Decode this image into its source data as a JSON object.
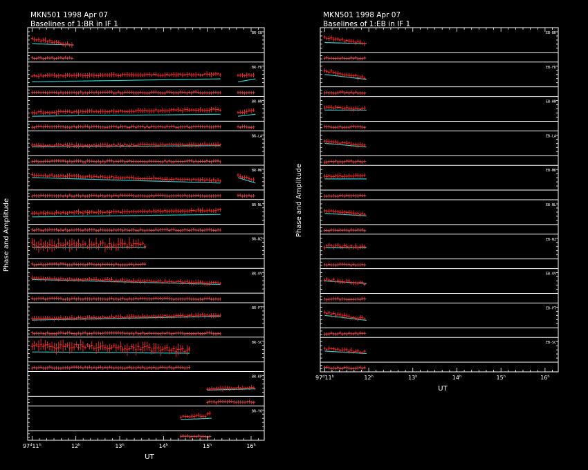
{
  "chart_data": [
    {
      "type": "scatter",
      "title": "MKN501  1998 Apr 07",
      "subtitle": "Baselines of 1:BR in IF 1",
      "xlabel": "UT",
      "ylabel": "Phase and Amplitude",
      "x_range_hours": [
        10.9,
        16.3
      ],
      "x_ticks": [
        {
          "hour": 11,
          "label": "97",
          "day_sup": "d",
          "hour_label": "11",
          "hour_sup": "h"
        },
        {
          "hour": 12,
          "label": "",
          "day_sup": "",
          "hour_label": "12",
          "hour_sup": "h"
        },
        {
          "hour": 13,
          "label": "",
          "day_sup": "",
          "hour_label": "13",
          "hour_sup": "h"
        },
        {
          "hour": 14,
          "label": "",
          "day_sup": "",
          "hour_label": "14",
          "hour_sup": "h"
        },
        {
          "hour": 15,
          "label": "",
          "day_sup": "",
          "hour_label": "15",
          "hour_sup": "h"
        },
        {
          "hour": 16,
          "label": "",
          "day_sup": "",
          "hour_label": "16",
          "hour_sup": "h"
        }
      ],
      "data_color": "#ff2a2a",
      "model_color": "#22d0d0",
      "baselines": [
        {
          "name": "BR-EB",
          "segments": [
            [
              11.0,
              11.95
            ]
          ],
          "amp_level": 0.55,
          "amp_slope": -0.25,
          "model_level": 0.35,
          "model_slope": -0.05,
          "noise": 0.08,
          "phase_level": 0.4
        },
        {
          "name": "BR-FD",
          "segments": [
            [
              11.0,
              15.3
            ],
            [
              15.7,
              16.1
            ]
          ],
          "amp_level": 0.45,
          "amp_slope": 0.05,
          "model_level": 0.2,
          "model_slope": 0.12,
          "noise": 0.05,
          "phase_level": 0.4
        },
        {
          "name": "BR-HN",
          "segments": [
            [
              11.0,
              15.3
            ],
            [
              15.7,
              16.1
            ]
          ],
          "amp_level": 0.35,
          "amp_slope": 0.12,
          "model_level": 0.2,
          "model_slope": 0.08,
          "noise": 0.06,
          "phase_level": 0.4
        },
        {
          "name": "BR-LA",
          "segments": [
            [
              11.0,
              15.3
            ]
          ],
          "amp_level": 0.4,
          "amp_slope": 0.05,
          "model_level": 0.35,
          "model_slope": 0.05,
          "noise": 0.05,
          "phase_level": 0.4
        },
        {
          "name": "BR-MK",
          "segments": [
            [
              11.0,
              15.3
            ],
            [
              15.7,
              16.1
            ]
          ],
          "amp_level": 0.6,
          "amp_slope": -0.22,
          "model_level": 0.5,
          "model_slope": -0.22,
          "noise": 0.06,
          "phase_level": 0.4
        },
        {
          "name": "BR-NL",
          "segments": [
            [
              11.0,
              15.3
            ]
          ],
          "amp_level": 0.45,
          "amp_slope": 0.12,
          "model_level": 0.3,
          "model_slope": 0.1,
          "noise": 0.05,
          "phase_level": 0.4
        },
        {
          "name": "BR-NZ",
          "segments": [
            [
              11.0,
              13.6
            ]
          ],
          "amp_level": 0.55,
          "amp_slope": 0.0,
          "model_level": 0.45,
          "model_slope": 0.0,
          "noise": 0.18,
          "phase_level": 0.4
        },
        {
          "name": "BR-OV",
          "segments": [
            [
              11.0,
              15.3
            ]
          ],
          "amp_level": 0.6,
          "amp_slope": -0.2,
          "model_level": 0.55,
          "model_slope": -0.2,
          "noise": 0.06,
          "phase_level": 0.4
        },
        {
          "name": "BR-PT",
          "segments": [
            [
              11.0,
              15.3
            ]
          ],
          "amp_level": 0.35,
          "amp_slope": 0.15,
          "model_level": 0.3,
          "model_slope": 0.15,
          "noise": 0.05,
          "phase_level": 0.4
        },
        {
          "name": "BR-SC",
          "segments": [
            [
              11.0,
              14.6
            ]
          ],
          "amp_level": 0.65,
          "amp_slope": -0.15,
          "model_level": 0.4,
          "model_slope": -0.05,
          "noise": 0.2,
          "phase_level": 0.4
        },
        {
          "name": "BR-KP",
          "segments": [
            [
              15.0,
              16.1
            ]
          ],
          "amp_level": 0.3,
          "amp_slope": 0.05,
          "model_level": 0.25,
          "model_slope": 0.05,
          "noise": 0.04,
          "phase_level": 0.4
        },
        {
          "name": "BR-YO",
          "segments": [
            [
              14.4,
              15.1
            ]
          ],
          "amp_level": 0.55,
          "amp_slope": 0.1,
          "model_level": 0.45,
          "model_slope": 0.05,
          "noise": 0.12,
          "phase_level": 0.4
        }
      ]
    },
    {
      "type": "scatter",
      "title": "MKN501  1998 Apr 07",
      "subtitle": "Baselines of 1:EB in IF 1",
      "xlabel": "UT",
      "ylabel": "Phase and Amplitude",
      "x_range_hours": [
        10.9,
        16.3
      ],
      "x_ticks": [
        {
          "hour": 11,
          "label": "97",
          "day_sup": "d",
          "hour_label": "11",
          "hour_sup": "h"
        },
        {
          "hour": 12,
          "label": "",
          "day_sup": "",
          "hour_label": "12",
          "hour_sup": "h"
        },
        {
          "hour": 13,
          "label": "",
          "day_sup": "",
          "hour_label": "13",
          "hour_sup": "h"
        },
        {
          "hour": 14,
          "label": "",
          "day_sup": "",
          "hour_label": "14",
          "hour_sup": "h"
        },
        {
          "hour": 15,
          "label": "",
          "day_sup": "",
          "hour_label": "15",
          "hour_sup": "h"
        },
        {
          "hour": 16,
          "label": "",
          "day_sup": "",
          "hour_label": "16",
          "hour_sup": "h"
        }
      ],
      "data_color": "#ff2a2a",
      "model_color": "#22d0d0",
      "baselines": [
        {
          "name": "EB-BR",
          "segments": [
            [
              11.0,
              11.95
            ]
          ],
          "amp_level": 0.6,
          "amp_slope": -0.25,
          "model_level": 0.4,
          "model_slope": -0.05,
          "noise": 0.08,
          "phase_level": 0.4
        },
        {
          "name": "EB-FD",
          "segments": [
            [
              11.0,
              11.95
            ]
          ],
          "amp_level": 0.65,
          "amp_slope": -0.3,
          "model_level": 0.5,
          "model_slope": -0.2,
          "noise": 0.07,
          "phase_level": 0.4
        },
        {
          "name": "EB-HN",
          "segments": [
            [
              11.0,
              11.95
            ]
          ],
          "amp_level": 0.55,
          "amp_slope": -0.05,
          "model_level": 0.45,
          "model_slope": 0.0,
          "noise": 0.06,
          "phase_level": 0.4
        },
        {
          "name": "EB-LA",
          "segments": [
            [
              11.0,
              11.95
            ]
          ],
          "amp_level": 0.6,
          "amp_slope": -0.2,
          "model_level": 0.5,
          "model_slope": -0.15,
          "noise": 0.07,
          "phase_level": 0.4
        },
        {
          "name": "EB-MK",
          "segments": [
            [
              11.0,
              11.95
            ]
          ],
          "amp_level": 0.55,
          "amp_slope": 0.05,
          "model_level": 0.45,
          "model_slope": 0.0,
          "noise": 0.06,
          "phase_level": 0.4
        },
        {
          "name": "EB-NL",
          "segments": [
            [
              11.0,
              11.95
            ]
          ],
          "amp_level": 0.55,
          "amp_slope": -0.15,
          "model_level": 0.45,
          "model_slope": -0.1,
          "noise": 0.06,
          "phase_level": 0.4
        },
        {
          "name": "EB-NZ",
          "segments": [
            [
              11.0,
              11.95
            ]
          ],
          "amp_level": 0.5,
          "amp_slope": 0.0,
          "model_level": 0.45,
          "model_slope": 0.0,
          "noise": 0.12,
          "phase_level": 0.4
        },
        {
          "name": "EB-OV",
          "segments": [
            [
              11.0,
              11.95
            ]
          ],
          "amp_level": 0.55,
          "amp_slope": -0.15,
          "model_level": 0.5,
          "model_slope": -0.1,
          "noise": 0.1,
          "phase_level": 0.4
        },
        {
          "name": "EB-PT",
          "segments": [
            [
              11.0,
              11.95
            ]
          ],
          "amp_level": 0.6,
          "amp_slope": -0.25,
          "model_level": 0.5,
          "model_slope": -0.2,
          "noise": 0.08,
          "phase_level": 0.4
        },
        {
          "name": "EB-SC",
          "segments": [
            [
              11.0,
              11.95
            ]
          ],
          "amp_level": 0.55,
          "amp_slope": -0.15,
          "model_level": 0.45,
          "model_slope": -0.1,
          "noise": 0.08,
          "phase_level": 0.4
        }
      ]
    }
  ]
}
